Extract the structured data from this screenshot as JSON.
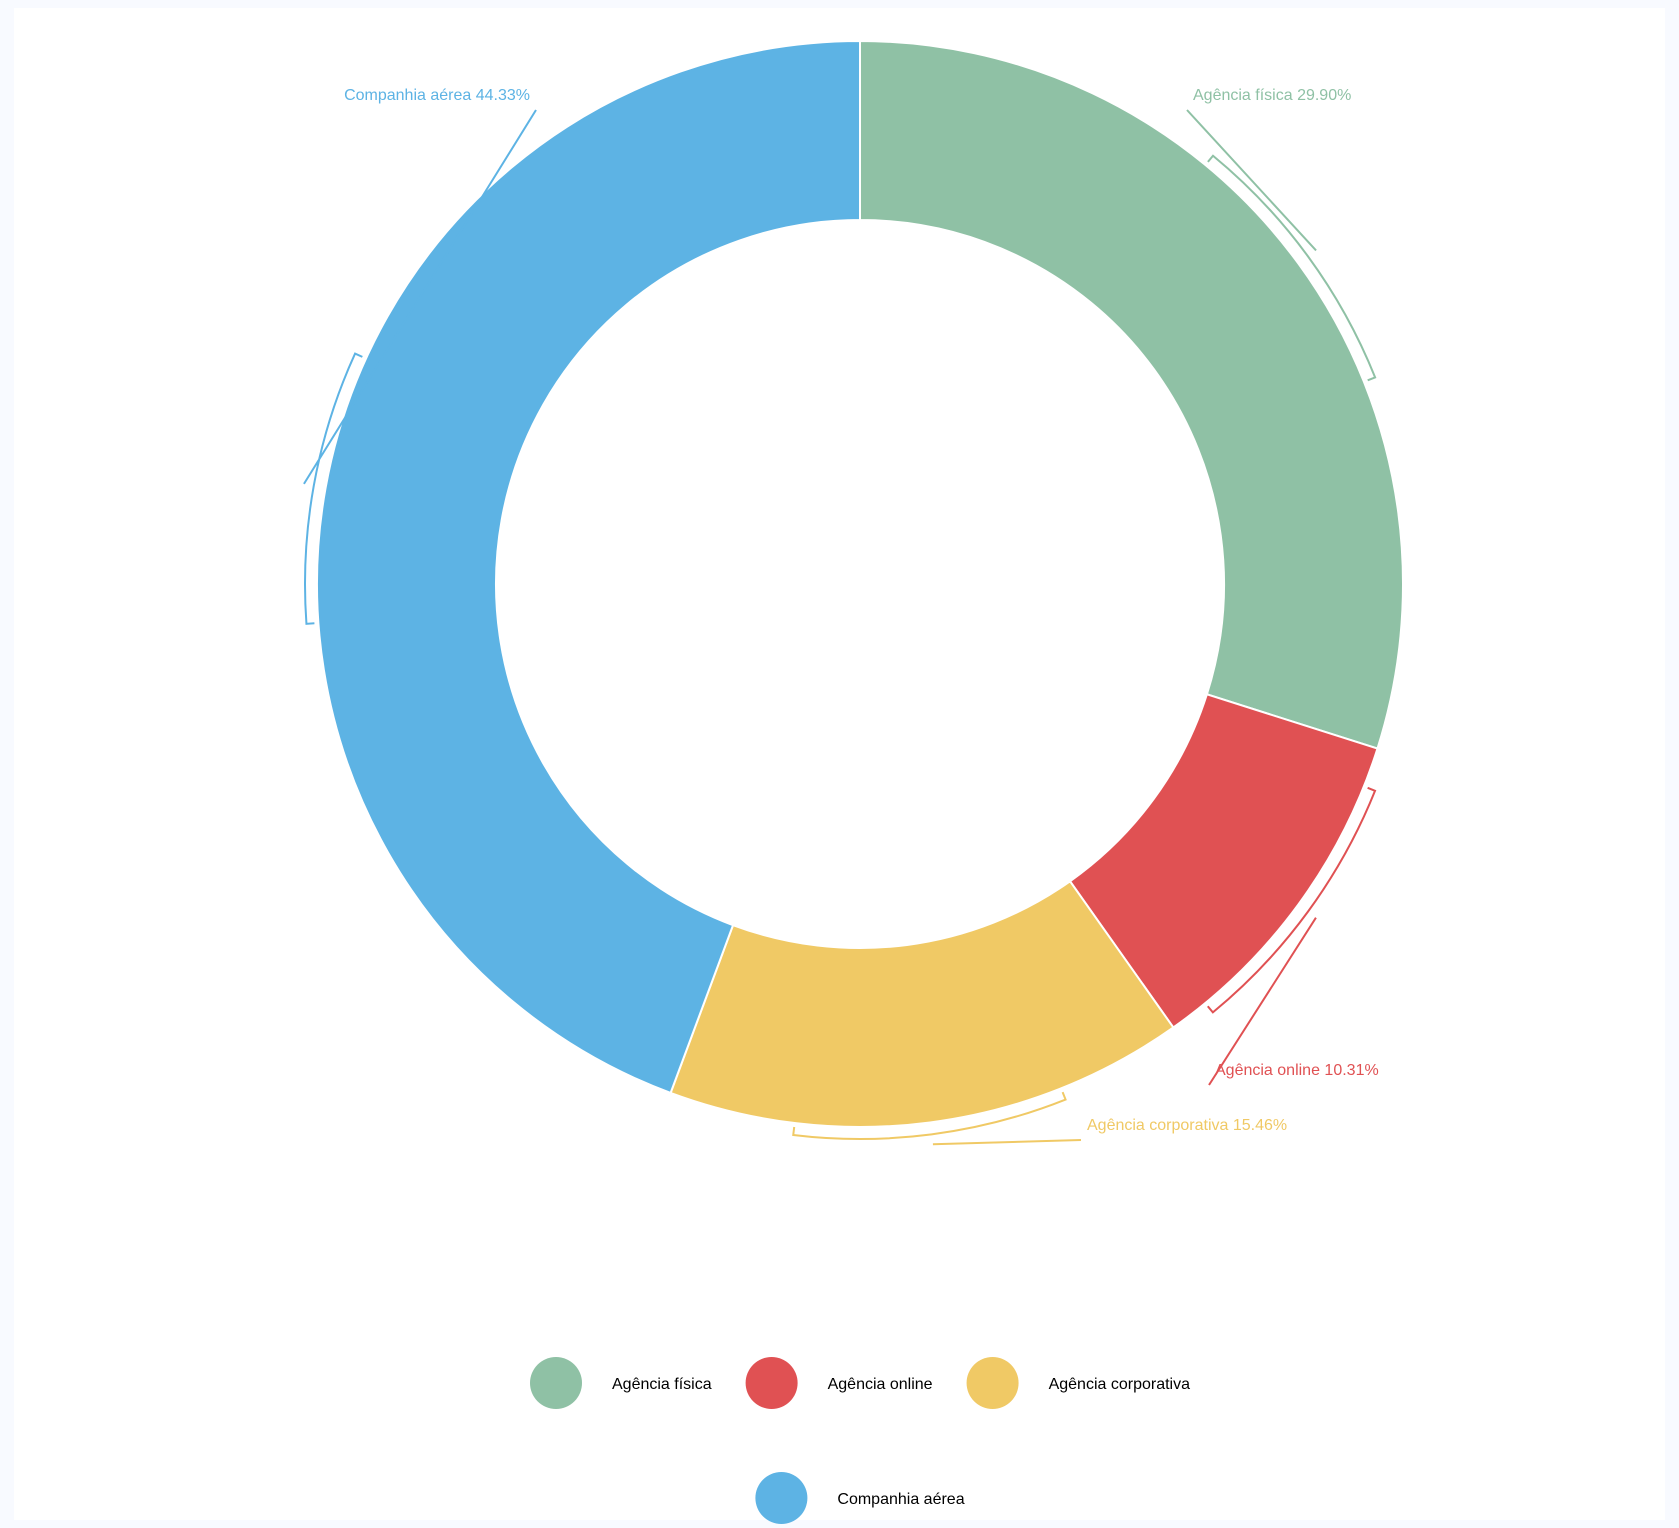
{
  "chart_data": {
    "type": "donut",
    "categories": [
      "Agência física",
      "Agência online",
      "Agência corporativa",
      "Companhia aérea"
    ],
    "values": [
      29.9,
      10.31,
      15.46,
      44.33
    ],
    "value_labels": [
      "29.90%",
      "10.31%",
      "15.46%",
      "44.33%"
    ],
    "colors": [
      "#8fc1a5",
      "#e05153",
      "#f0c965",
      "#5db3e4"
    ],
    "legend": "bottom"
  }
}
